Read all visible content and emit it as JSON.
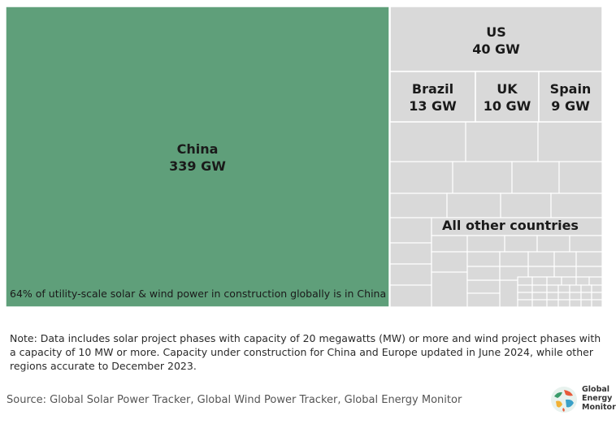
{
  "chart_data": {
    "type": "treemap",
    "unit": "GW",
    "items": [
      {
        "name": "China",
        "value": 339,
        "label": "339 GW",
        "color": "#5f9f7a"
      },
      {
        "name": "US",
        "value": 40,
        "label": "40 GW",
        "color": "#d9d9d9"
      },
      {
        "name": "Brazil",
        "value": 13,
        "label": "13 GW",
        "color": "#d9d9d9"
      },
      {
        "name": "UK",
        "value": 10,
        "label": "10 GW",
        "color": "#d9d9d9"
      },
      {
        "name": "Spain",
        "value": 9,
        "label": "9 GW",
        "color": "#d9d9d9"
      }
    ],
    "group_label": "All other countries",
    "annotation": "64% of utility-scale solar & wind power in construction globally is in China",
    "colors": {
      "china": "#5f9f7a",
      "other": "#d9d9d9",
      "border": "#ffffff"
    }
  },
  "note": "Note: Data includes solar project phases with capacity of 20 megawatts (MW) or more and wind project phases with a capacity of 10 MW or more. Capacity under construction for China and Europe updated in June 2024, while other regions accurate to December 2023.",
  "source": "Source: Global Solar Power Tracker, Global Wind Power Tracker, Global Energy Monitor",
  "logo": {
    "line1": "Global",
    "line2": "Energy",
    "line3": "Monitor"
  }
}
